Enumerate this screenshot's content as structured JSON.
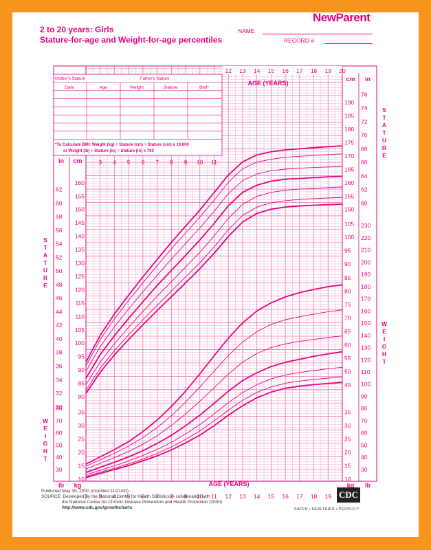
{
  "header": {
    "title_line1": "2 to 20 years: Girls",
    "title_line2": "Stature-for-age and Weight-for-age percentiles",
    "logo": "NewParent",
    "name_label": "NAME",
    "record_label": "RECORD #"
  },
  "record_table": {
    "mothers_stature": "Mother's Stature",
    "fathers_stature": "Father's Stature",
    "columns": [
      "Date",
      "Age",
      "Weight",
      "Stature",
      "BMI*"
    ],
    "bmi_note_line1": "*To Calculate BMI: Weight (kg) ÷ Stature (cm) ÷ Stature (cm) x 10,000",
    "bmi_note_line2": "or Weight (lb) ÷ Stature (in) ÷ Stature (in) x 703"
  },
  "footer": {
    "line1": "Published May 30, 2000 (modified 11/21/00).",
    "line2": "SOURCE: Developed by the National Center for Health Statistics in collaboration with",
    "line3": "the National Center for Chronic Disease Prevention and Health Promotion (2000).",
    "line4": "http://www.cdc.gov/growthcharts",
    "cdc_logo": "CDC",
    "tagline": "SAFER • HEALTHIER • PEOPLE™"
  },
  "colors": {
    "accent": "#e6007e",
    "frame": "#f7941e",
    "grid": "#f3a6cd"
  },
  "chart_data": {
    "type": "line",
    "title": "Stature-for-age and Weight-for-age percentiles",
    "xlabel": "AGE (YEARS)",
    "x_range": [
      2,
      20
    ],
    "x_ticks": [
      2,
      3,
      4,
      5,
      6,
      7,
      8,
      9,
      10,
      11,
      12,
      13,
      14,
      15,
      16,
      17,
      18,
      19,
      20
    ],
    "x_ticks_top": [
      12,
      13,
      14,
      15,
      16,
      17,
      18,
      19,
      20
    ],
    "x_ticks_mid": [
      3,
      4,
      5,
      6,
      7,
      8,
      9,
      10,
      11
    ],
    "percentile_labels": [
      "95",
      "90",
      "75",
      "50",
      "25",
      "10",
      "5"
    ],
    "stature": {
      "ylabel": "STATURE",
      "unit_cm": "cm",
      "unit_in": "in",
      "ylim_cm": [
        77,
        197
      ],
      "cm_ticks_left": [
        80,
        85,
        90,
        95,
        100,
        105,
        110,
        115,
        120,
        125,
        130,
        135,
        140,
        145,
        150,
        155,
        160
      ],
      "cm_ticks_right": [
        150,
        155,
        160,
        165,
        170,
        175,
        180,
        185,
        190
      ],
      "in_ticks_left": [
        30,
        32,
        34,
        36,
        38,
        40,
        42,
        44,
        46,
        48,
        50,
        52,
        54,
        56,
        58,
        60,
        62
      ],
      "in_ticks_right": [
        60,
        62,
        64,
        66,
        68,
        70,
        72,
        74,
        76
      ],
      "x": [
        2,
        3,
        4,
        5,
        6,
        7,
        8,
        9,
        10,
        11,
        12,
        13,
        14,
        15,
        16,
        17,
        18,
        19,
        20
      ],
      "series": [
        {
          "name": "95",
          "values": [
            92.9,
            102.9,
            110.9,
            118.0,
            124.8,
            131.3,
            137.7,
            143.8,
            149.8,
            156.3,
            162.9,
            167.8,
            170.4,
            171.6,
            172.3,
            172.7,
            173.1,
            173.5,
            173.8
          ]
        },
        {
          "name": "90",
          "values": [
            91.5,
            101.3,
            109.1,
            116.0,
            122.6,
            129.0,
            135.3,
            141.3,
            147.2,
            153.5,
            160.2,
            165.2,
            167.7,
            168.8,
            169.5,
            169.9,
            170.2,
            170.5,
            170.8
          ]
        },
        {
          "name": "75",
          "values": [
            89.5,
            98.7,
            106.1,
            112.8,
            119.2,
            125.4,
            131.4,
            137.3,
            143.1,
            149.3,
            155.9,
            160.8,
            163.3,
            164.5,
            165.1,
            165.4,
            165.7,
            165.9,
            166.1
          ]
        },
        {
          "name": "50",
          "values": [
            86.9,
            95.7,
            102.8,
            109.3,
            115.5,
            121.6,
            127.2,
            132.9,
            138.6,
            144.8,
            151.4,
            156.4,
            159.1,
            160.6,
            161.3,
            161.6,
            161.9,
            162.2,
            162.4
          ]
        },
        {
          "name": "25",
          "values": [
            84.5,
            92.9,
            99.8,
            106.0,
            111.9,
            117.6,
            123.0,
            128.5,
            134.0,
            140.1,
            146.7,
            151.9,
            154.9,
            156.4,
            157.2,
            157.6,
            157.9,
            158.2,
            158.4
          ]
        },
        {
          "name": "10",
          "values": [
            82.4,
            90.6,
            97.2,
            103.2,
            108.8,
            114.2,
            119.5,
            124.8,
            130.1,
            136.0,
            142.5,
            147.8,
            150.9,
            152.5,
            153.3,
            153.8,
            154.1,
            154.3,
            154.5
          ]
        },
        {
          "name": "5",
          "values": [
            81.2,
            89.1,
            95.6,
            101.4,
            106.9,
            112.2,
            117.4,
            122.6,
            127.9,
            133.6,
            139.9,
            145.3,
            148.5,
            150.1,
            150.9,
            151.3,
            151.6,
            151.8,
            152.0
          ]
        }
      ]
    },
    "weight": {
      "ylabel": "WEIGHT",
      "unit_kg": "kg",
      "unit_lb": "lb",
      "ylim_kg": [
        7,
        110
      ],
      "kg_ticks_left": [
        10,
        15,
        20,
        25,
        30,
        35
      ],
      "kg_ticks_right": [
        45,
        50,
        55,
        60,
        65,
        70,
        75,
        80,
        85,
        90,
        95,
        100,
        105
      ],
      "kg_ticks_right_low": [
        10,
        15,
        20,
        25,
        30,
        35
      ],
      "lb_ticks_left": [
        30,
        40,
        50,
        60,
        70,
        80
      ],
      "lb_ticks_right": [
        30,
        40,
        50,
        60,
        70,
        80,
        90,
        100,
        110,
        120,
        130,
        140,
        150,
        160,
        170,
        180,
        190,
        200,
        210,
        220,
        230
      ],
      "x": [
        2,
        3,
        4,
        5,
        6,
        7,
        8,
        9,
        10,
        11,
        12,
        13,
        14,
        15,
        16,
        17,
        18,
        19,
        20
      ],
      "series": [
        {
          "name": "95",
          "values": [
            15.6,
            18.3,
            21.0,
            24.0,
            27.7,
            32.0,
            37.0,
            42.8,
            49.2,
            55.9,
            62.5,
            68.1,
            72.6,
            75.6,
            77.8,
            79.4,
            80.6,
            81.6,
            82.3
          ]
        },
        {
          "name": "90",
          "values": [
            14.9,
            17.2,
            19.6,
            22.3,
            25.5,
            29.2,
            33.6,
            38.7,
            44.3,
            50.2,
            56.0,
            61.0,
            64.9,
            67.6,
            69.3,
            70.4,
            71.4,
            72.3,
            73.0
          ]
        },
        {
          "name": "75",
          "values": [
            13.8,
            15.9,
            18.0,
            20.3,
            23.0,
            26.2,
            30.0,
            34.3,
            39.0,
            44.0,
            49.1,
            53.5,
            56.8,
            59.0,
            60.3,
            61.3,
            62.0,
            62.7,
            63.3
          ]
        },
        {
          "name": "50",
          "values": [
            12.5,
            14.4,
            16.3,
            18.3,
            20.6,
            23.3,
            26.3,
            29.9,
            33.8,
            38.2,
            42.7,
            46.7,
            49.6,
            51.9,
            53.5,
            54.6,
            55.7,
            56.6,
            57.4
          ]
        },
        {
          "name": "25",
          "values": [
            11.6,
            13.3,
            15.0,
            16.8,
            18.8,
            21.1,
            23.7,
            26.8,
            30.3,
            34.3,
            38.5,
            42.2,
            45.2,
            47.3,
            48.8,
            49.7,
            50.4,
            51.1,
            51.6
          ]
        },
        {
          "name": "10",
          "values": [
            11.0,
            12.6,
            14.1,
            15.7,
            17.5,
            19.6,
            22.0,
            24.8,
            28.0,
            31.7,
            35.7,
            39.3,
            42.3,
            44.3,
            45.7,
            46.5,
            47.1,
            47.6,
            48.0
          ]
        },
        {
          "name": "5",
          "values": [
            10.6,
            12.1,
            13.6,
            15.1,
            16.8,
            18.7,
            20.9,
            23.5,
            26.4,
            29.9,
            33.8,
            37.3,
            40.3,
            42.4,
            43.8,
            44.6,
            45.2,
            45.6,
            46.0
          ]
        }
      ]
    }
  }
}
